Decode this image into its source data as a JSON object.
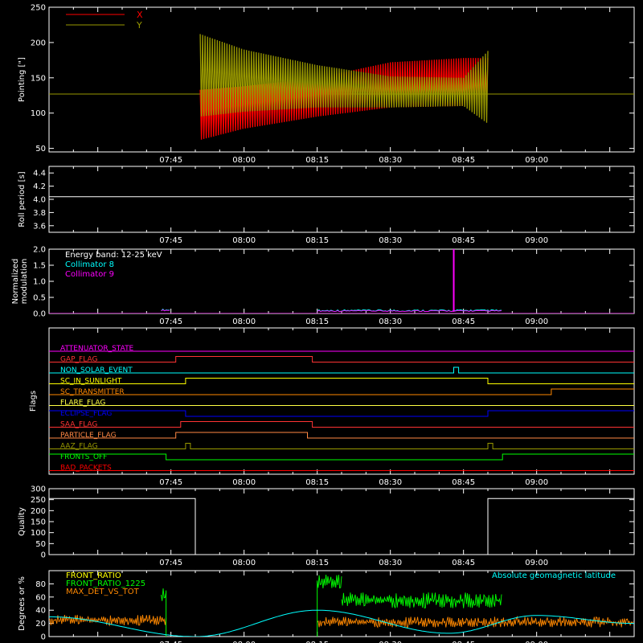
{
  "time_axis": {
    "ticks": [
      "07:45",
      "08:00",
      "08:15",
      "08:30",
      "08:45",
      "09:00"
    ]
  },
  "chart_data": [
    {
      "type": "line",
      "ylabel": "Pointing [\"]",
      "ylim": [
        45,
        250
      ],
      "yticks": [
        50,
        100,
        150,
        200,
        250
      ],
      "baseline": 127,
      "series": [
        {
          "name": "X",
          "color": "#ff0000",
          "envelope": [
            {
              "t": "07:51",
              "min": 62,
              "max": 133
            },
            {
              "t": "08:00",
              "min": 78,
              "max": 138
            },
            {
              "t": "08:15",
              "min": 95,
              "max": 150
            },
            {
              "t": "08:30",
              "min": 108,
              "max": 172
            },
            {
              "t": "08:45",
              "min": 110,
              "max": 178
            },
            {
              "t": "08:50",
              "min": 112,
              "max": 178
            }
          ]
        },
        {
          "name": "Y",
          "color": "#999900",
          "envelope": [
            {
              "t": "07:51",
              "min": 95,
              "max": 212
            },
            {
              "t": "08:00",
              "min": 102,
              "max": 190
            },
            {
              "t": "08:15",
              "min": 108,
              "max": 168
            },
            {
              "t": "08:30",
              "min": 108,
              "max": 152
            },
            {
              "t": "08:45",
              "min": 110,
              "max": 150
            },
            {
              "t": "08:50",
              "min": 85,
              "max": 188
            }
          ]
        }
      ]
    },
    {
      "type": "line",
      "ylabel": "Roll period [s]",
      "ylim": [
        3.5,
        4.5
      ],
      "yticks": [
        3.6,
        3.8,
        4.0,
        4.2,
        4.4
      ],
      "series": [
        {
          "color": "#ffffff",
          "value": 4.04
        }
      ]
    },
    {
      "type": "line",
      "ylabel": [
        "Normalized",
        "modulation"
      ],
      "ylim": [
        0,
        2.0
      ],
      "yticks": [
        0.0,
        0.5,
        1.0,
        1.5,
        2.0
      ],
      "annotation": "Energy band: 12-25 keV",
      "series": [
        {
          "name": "Collimator 8",
          "color": "#00ffff"
        },
        {
          "name": "Collimator 9",
          "color": "#ff00ff"
        }
      ],
      "segments": [
        {
          "start": "07:43",
          "end": "07:45",
          "value": 0.08
        },
        {
          "start": "08:15",
          "end": "08:53",
          "value": 0.06
        }
      ],
      "spike": {
        "t": "08:43",
        "value": 2.0
      }
    },
    {
      "type": "table",
      "ylabel": "Flags",
      "rows": [
        {
          "name": "ATTENUATOR_STATE",
          "color": "#ff00ff",
          "transitions": [
            [
              "07:20",
              0
            ]
          ]
        },
        {
          "name": "GAP_FLAG",
          "color": "#ff3333",
          "transitions": [
            [
              "07:20",
              0
            ],
            [
              "07:46",
              1
            ],
            [
              "08:14",
              0
            ]
          ]
        },
        {
          "name": "NON_SOLAR_EVENT",
          "color": "#00ffff",
          "transitions": [
            [
              "07:20",
              0
            ],
            [
              "08:43",
              1
            ],
            [
              "08:44",
              0
            ]
          ]
        },
        {
          "name": "SC_IN_SUNLIGHT",
          "color": "#ffff00",
          "transitions": [
            [
              "07:20",
              0
            ],
            [
              "07:48",
              1
            ],
            [
              "08:50",
              0
            ]
          ]
        },
        {
          "name": "SC_TRANSMITTER",
          "color": "#ff8800",
          "transitions": [
            [
              "07:20",
              0
            ],
            [
              "09:03",
              1
            ]
          ]
        },
        {
          "name": "FLARE_FLAG",
          "color": "#ffff44",
          "transitions": [
            [
              "07:20",
              0
            ]
          ]
        },
        {
          "name": "ECLIPSE_FLAG",
          "color": "#0000ff",
          "transitions": [
            [
              "07:20",
              1
            ],
            [
              "07:48",
              0
            ],
            [
              "08:50",
              1
            ]
          ]
        },
        {
          "name": "SAA_FLAG",
          "color": "#ff3333",
          "transitions": [
            [
              "07:20",
              0
            ],
            [
              "07:47",
              1
            ],
            [
              "08:14",
              0
            ]
          ]
        },
        {
          "name": "PARTICLE_FLAG",
          "color": "#ff8844",
          "transitions": [
            [
              "07:20",
              0
            ],
            [
              "07:46",
              1
            ],
            [
              "08:13",
              0
            ]
          ]
        },
        {
          "name": "AAZ_FLAG",
          "color": "#999900",
          "transitions": [
            [
              "07:20",
              0
            ],
            [
              "07:48",
              1
            ],
            [
              "07:49",
              0
            ],
            [
              "08:50",
              1
            ],
            [
              "08:51",
              0
            ]
          ]
        },
        {
          "name": "FRONTS_OFF",
          "color": "#00ff00",
          "transitions": [
            [
              "07:20",
              1
            ],
            [
              "07:44",
              0
            ],
            [
              "08:53",
              1
            ]
          ]
        },
        {
          "name": "BAD_PACKETS",
          "color": "#ff0000",
          "transitions": [
            [
              "07:20",
              0
            ]
          ]
        }
      ]
    },
    {
      "type": "line",
      "ylabel": "Quality",
      "ylim": [
        0,
        300
      ],
      "yticks": [
        0,
        50,
        100,
        150,
        200,
        250,
        300
      ],
      "series": [
        {
          "color": "#ffffff",
          "points": [
            [
              "07:20",
              255
            ],
            [
              "07:50",
              255
            ],
            [
              "07:50",
              0
            ],
            [
              "08:50",
              0
            ],
            [
              "08:50",
              255
            ],
            [
              "09:20",
              255
            ]
          ]
        }
      ]
    },
    {
      "type": "line",
      "ylabel": "Degrees or %",
      "ylim": [
        0,
        100
      ],
      "yticks": [
        0,
        20,
        40,
        60,
        80
      ],
      "series": [
        {
          "name": "FRONT_RATIO",
          "color": "#ffff00"
        },
        {
          "name": "FRONT_RATIO_1225",
          "color": "#00ff00",
          "segments": [
            {
              "start": "07:43",
              "end": "07:44",
              "value": 62
            },
            {
              "start": "08:15",
              "end": "08:20",
              "value": 82
            },
            {
              "start": "08:20",
              "end": "08:53",
              "value": 55
            }
          ]
        },
        {
          "name": "MAX_DET_VS_TOT",
          "color": "#ff8800",
          "segments": [
            {
              "start": "07:20",
              "end": "07:44",
              "value": 25
            },
            {
              "start": "08:15",
              "end": "09:20",
              "value": 22
            }
          ]
        },
        {
          "name": "Absolute geomagnetic latitude",
          "color": "#00ffff",
          "points": [
            [
              "07:20",
              30
            ],
            [
              "07:50",
              0
            ],
            [
              "08:15",
              40
            ],
            [
              "08:42",
              5
            ],
            [
              "09:00",
              32
            ],
            [
              "09:20",
              20
            ]
          ]
        }
      ]
    }
  ]
}
